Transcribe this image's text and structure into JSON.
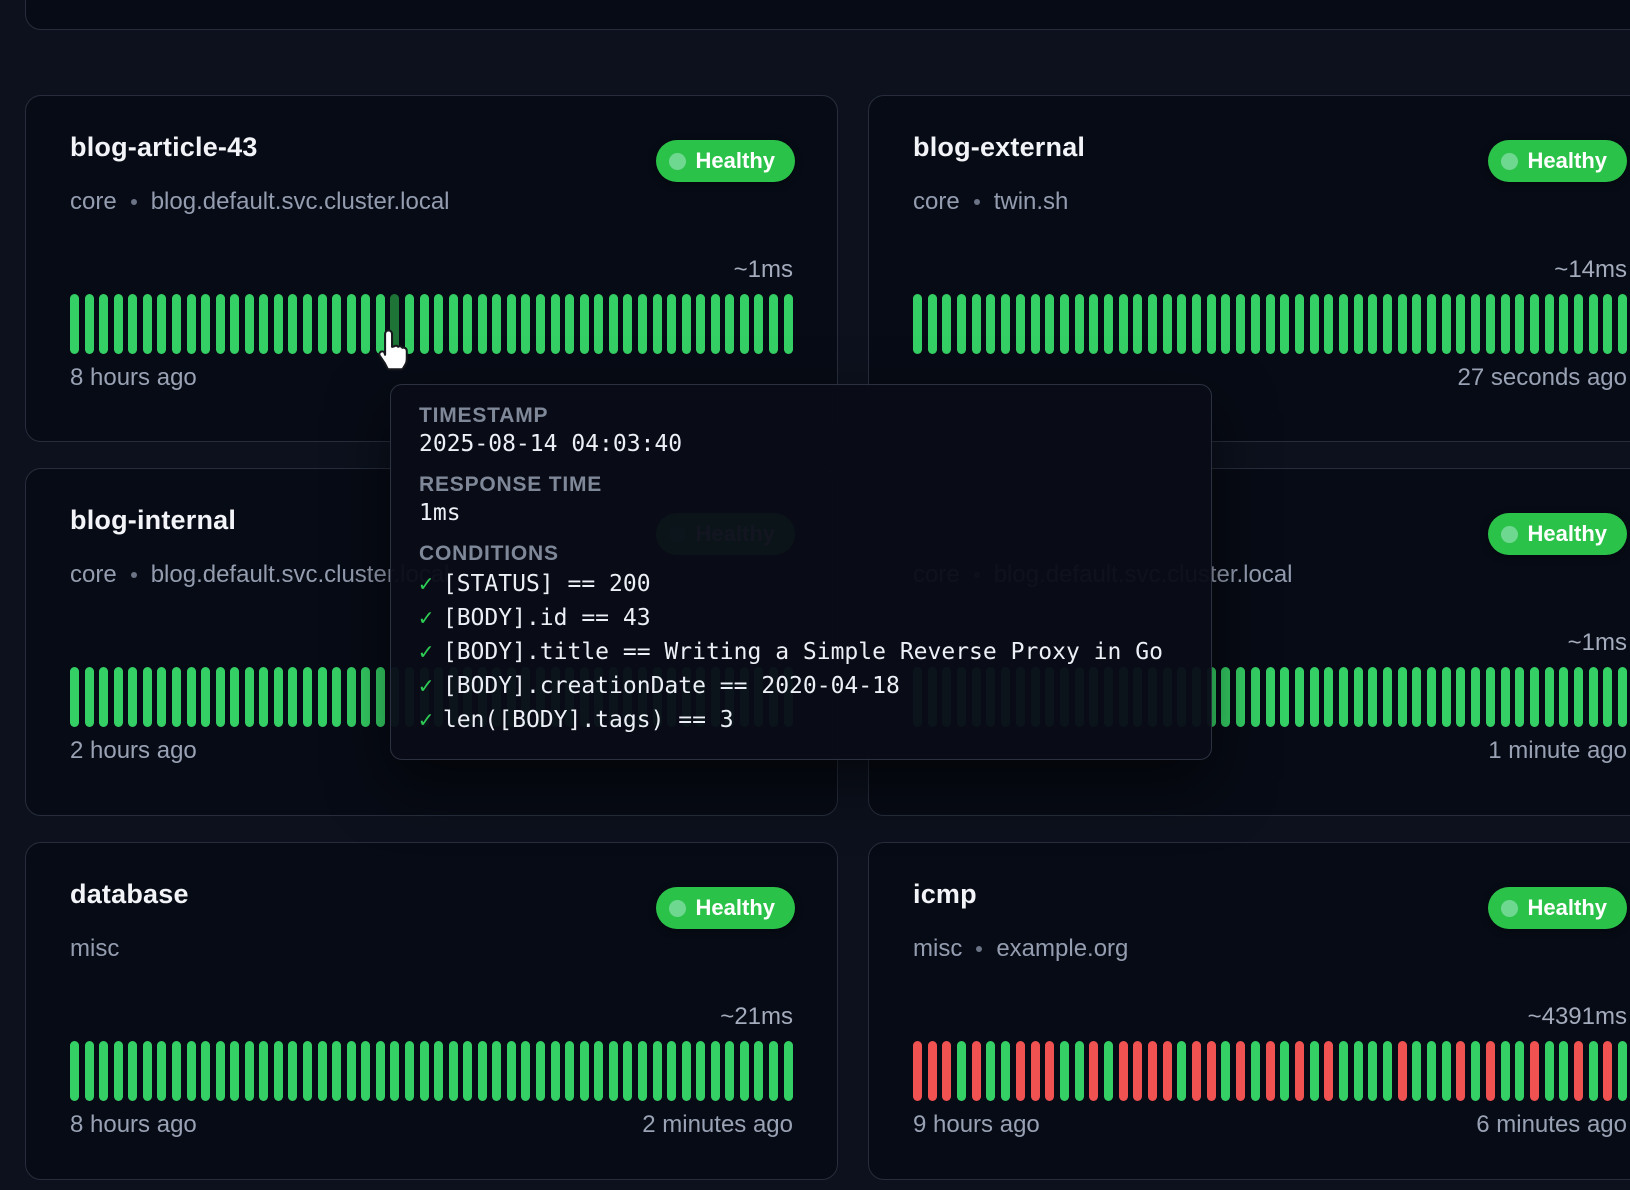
{
  "status_label": "Healthy",
  "separator": "•",
  "colors": {
    "page_bg": "#0c111d",
    "card_bg": "#070b15",
    "card_border": "#272d3c",
    "bar_up": "#35d065",
    "bar_down": "#f05151",
    "bar_hover": "#1d7436",
    "badge_bg": "#2bc24a",
    "check_green": "#2ecb55"
  },
  "cards": [
    {
      "name": "blog-article-43",
      "group": "core",
      "host": "blog.default.svc.cluster.local",
      "status": "Healthy",
      "response_time": "~1ms",
      "oldest": "8 hours ago",
      "newest": "",
      "bars": {
        "pattern": "GGGGGGGGGGGGGGGGGGGGGGGGGGGGGGGGGGGGGGGGGGGGGGGGGG",
        "hover": 22
      }
    },
    {
      "name": "blog-external",
      "group": "core",
      "host": "twin.sh",
      "status": "Healthy",
      "response_time": "~14ms",
      "oldest": "",
      "newest": "27 seconds ago",
      "bars": {
        "pattern": "GGGGGGGGGGGGGGGGGGGGGGGGGGGGGGGGGGGGGGGGGGGGGGGGG",
        "hover": null
      }
    },
    {
      "name": "blog-internal",
      "group": "core",
      "host": "blog.default.svc.cluster.local",
      "status": "Healthy",
      "response_time": "",
      "oldest": "2 hours ago",
      "newest": "",
      "bars": {
        "pattern": "GGGGGGGGGGGGGGGGGGGGGGGGGGGGGGGGGGGGGGGGGGGGGGGGGG",
        "hover": null
      }
    },
    {
      "name": "",
      "group": "core",
      "host": "blog.default.svc.cluster.local",
      "status": "Healthy",
      "response_time": "~1ms",
      "oldest": "",
      "newest": "1 minute ago",
      "bars": {
        "pattern": "GGGGGGGGGGGGGGGGGGGGGGGGGGGGGGGGGGGGGGGGGGGGGGGGG",
        "hover": null
      }
    },
    {
      "name": "database",
      "group": "misc",
      "host": "",
      "status": "Healthy",
      "response_time": "~21ms",
      "oldest": "8 hours ago",
      "newest": "2 minutes ago",
      "bars": {
        "pattern": "GGGGGGGGGGGGGGGGGGGGGGGGGGGGGGGGGGGGGGGGGGGGGGGGGG",
        "hover": null
      }
    },
    {
      "name": "icmp",
      "group": "misc",
      "host": "example.org",
      "status": "Healthy",
      "response_time": "~4391ms",
      "oldest": "9 hours ago",
      "newest": "6 minutes ago",
      "bars": {
        "pattern": "RRRGRGGRRRGGRGRRRRGRRGRGRGRGRGGGGRGGGRGRGGRGGRGRG",
        "hover": null
      }
    }
  ],
  "tooltip": {
    "timestamp_label": "TIMESTAMP",
    "timestamp": "2025-08-14 04:03:40",
    "response_label": "RESPONSE TIME",
    "response": "1ms",
    "conditions_label": "CONDITIONS",
    "check_mark": "✓",
    "conditions": [
      "[STATUS] == 200",
      "[BODY].id == 43",
      "[BODY].title == Writing a Simple Reverse Proxy in Go",
      "[BODY].creationDate == 2020-04-18",
      "len([BODY].tags) == 3"
    ]
  }
}
